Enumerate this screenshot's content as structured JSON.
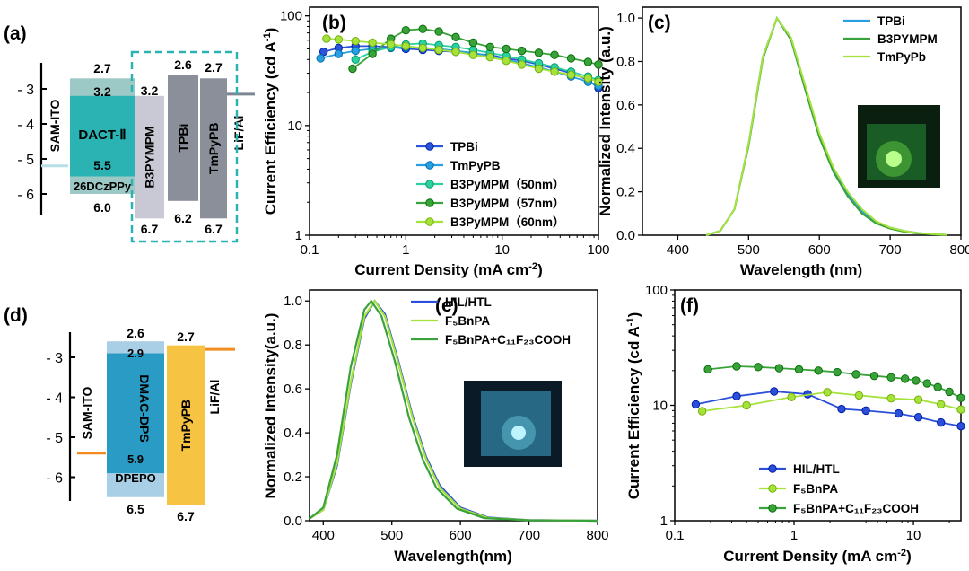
{
  "chart_data": [
    {
      "type": "diagram",
      "panel": "(a)",
      "yticks": [
        "- 3",
        "- 4",
        "- 5",
        "- 6"
      ],
      "electrode_left": "SAM-ITO",
      "electrode_right": "LiF/Al",
      "layers": [
        {
          "name": "DACT-Ⅱ",
          "lumo": 3.2,
          "homo": 5.5,
          "lumo_label": "3.2",
          "homo_label": "5.5",
          "color": "#2bb3b3"
        },
        {
          "name": "26DCzPPy",
          "lumo": 2.7,
          "homo": 6.0,
          "lumo_label": "2.7",
          "homo_label": "6.0",
          "color": "#9cc9c5"
        },
        {
          "name": "B3PYMPM",
          "lumo": 3.2,
          "homo": 6.7,
          "lumo_label": "3.2",
          "homo_label": "6.7",
          "color": "#c9c9d6"
        },
        {
          "name": "TPBi",
          "lumo": 2.6,
          "homo": 6.2,
          "lumo_label": "2.6",
          "homo_label": "6.2",
          "color": "#8a8f99"
        },
        {
          "name": "TmPyPB",
          "lumo": 2.7,
          "homo": 6.7,
          "lumo_label": "2.7",
          "homo_label": "6.7",
          "color": "#8a8f99"
        }
      ]
    },
    {
      "type": "line",
      "panel": "(b)",
      "xlabel": "Current Density (mA cm",
      "xlabel_sup": "-2",
      "xlabel_end": ")",
      "ylabel": "Current Efficiency (cd A",
      "ylabel_sup": "-1",
      "ylabel_end": ")",
      "xscale": "log",
      "yscale": "log",
      "xlim": [
        0.1,
        100
      ],
      "ylim": [
        1,
        120
      ],
      "xticks": [
        "0.1",
        "1",
        "10",
        "100"
      ],
      "yticks": [
        "1",
        "10",
        "100"
      ],
      "series": [
        {
          "name": "TPBi",
          "color": "#2b55d9",
          "x": [
            0.14,
            0.2,
            0.3,
            0.45,
            0.7,
            1.0,
            1.5,
            2.2,
            3.3,
            5,
            7.5,
            11,
            16,
            24,
            35,
            52,
            78,
            100
          ],
          "y": [
            47,
            51,
            53,
            53,
            52,
            50,
            49,
            48,
            47,
            45,
            44,
            41,
            39,
            36,
            33,
            30,
            26,
            22
          ]
        },
        {
          "name": "TmPyPB",
          "color": "#2a9fe0",
          "x": [
            0.13,
            0.2,
            0.3,
            0.45,
            0.7,
            1.0,
            1.5,
            2.2,
            3.3,
            5,
            7.5,
            11,
            16,
            24,
            35,
            52,
            78,
            100
          ],
          "y": [
            41,
            45,
            48,
            50,
            51,
            52,
            51,
            50,
            48,
            46,
            43,
            40,
            37,
            34,
            31,
            28,
            25,
            23
          ]
        },
        {
          "name": "B3PyMPM（50nm）",
          "color": "#2fd0a0",
          "x": [
            0.3,
            0.45,
            0.7,
            1.0,
            1.5,
            2.2,
            3.3,
            5,
            7.5,
            11,
            16,
            24,
            35,
            52,
            78,
            100
          ],
          "y": [
            40,
            47,
            52,
            55,
            56,
            54,
            52,
            49,
            46,
            43,
            40,
            37,
            34,
            31,
            28,
            26
          ]
        },
        {
          "name": "B3PyMPM（57nm）",
          "color": "#3aa23a",
          "x": [
            0.28,
            0.45,
            0.7,
            1.0,
            1.5,
            2.2,
            3.3,
            5,
            7.5,
            11,
            16,
            24,
            35,
            52,
            78,
            100
          ],
          "y": [
            33,
            45,
            62,
            74,
            76,
            72,
            64,
            57,
            52,
            50,
            48,
            46,
            44,
            41,
            38,
            36
          ]
        },
        {
          "name": "B3PyMPM（60nm）",
          "color": "#a6e23c",
          "x": [
            0.15,
            0.2,
            0.3,
            0.45,
            0.7,
            1.0,
            1.5,
            2.2,
            3.3,
            5,
            7.5,
            11,
            16,
            24,
            35,
            52,
            78,
            100
          ],
          "y": [
            62,
            61,
            59,
            57,
            55,
            53,
            51,
            49,
            47,
            44,
            42,
            39,
            36,
            33,
            31,
            29,
            27,
            25
          ]
        }
      ]
    },
    {
      "type": "line",
      "panel": "(c)",
      "xlabel": "Wavelength (nm)",
      "ylabel": "Normalized Intensity (a.u.)",
      "xlim": [
        350,
        800
      ],
      "ylim": [
        0,
        1.05
      ],
      "xticks": [
        "400",
        "500",
        "600",
        "700",
        "800"
      ],
      "yticks": [
        "0.0",
        "0.2",
        "0.4",
        "0.6",
        "0.8",
        "1.0"
      ],
      "series": [
        {
          "name": "TPBi",
          "color": "#2a9fe0",
          "x": [
            440,
            460,
            480,
            500,
            520,
            540,
            560,
            580,
            600,
            620,
            640,
            660,
            680,
            700,
            720,
            740,
            760,
            780
          ],
          "y": [
            0.0,
            0.02,
            0.12,
            0.42,
            0.82,
            1.0,
            0.9,
            0.68,
            0.46,
            0.3,
            0.19,
            0.11,
            0.06,
            0.035,
            0.02,
            0.01,
            0.005,
            0.002
          ]
        },
        {
          "name": "B3PYMPM",
          "color": "#3aa23a",
          "x": [
            440,
            460,
            480,
            500,
            520,
            540,
            560,
            580,
            600,
            620,
            640,
            660,
            680,
            700,
            720,
            740,
            760,
            780
          ],
          "y": [
            0.0,
            0.02,
            0.12,
            0.41,
            0.81,
            1.0,
            0.9,
            0.67,
            0.45,
            0.29,
            0.18,
            0.1,
            0.055,
            0.03,
            0.016,
            0.008,
            0.004,
            0.001
          ]
        },
        {
          "name": "TmPyPb",
          "color": "#a6e23c",
          "x": [
            440,
            460,
            480,
            500,
            520,
            540,
            560,
            580,
            600,
            620,
            640,
            660,
            680,
            700,
            720,
            740,
            760,
            780
          ],
          "y": [
            0.0,
            0.02,
            0.12,
            0.42,
            0.82,
            1.0,
            0.91,
            0.69,
            0.47,
            0.31,
            0.2,
            0.12,
            0.065,
            0.035,
            0.02,
            0.01,
            0.005,
            0.002
          ]
        }
      ]
    },
    {
      "type": "diagram",
      "panel": "(d)",
      "yticks": [
        "- 3",
        "- 4",
        "- 5",
        "- 6"
      ],
      "electrode_left": "SAM-ITO",
      "electrode_right": "LiF/Al",
      "layers": [
        {
          "name": "DMAC-DPS",
          "lumo": 2.9,
          "homo": 5.9,
          "lumo_label": "2.9",
          "homo_label": "5.9",
          "color": "#2a9bc4"
        },
        {
          "name": "DPEPO",
          "lumo": 2.6,
          "homo": 6.5,
          "lumo_label": "2.6",
          "homo_label": "6.5",
          "color": "#a8cfe6"
        },
        {
          "name": "TmPyPB",
          "lumo": 2.7,
          "homo": 6.7,
          "lumo_label": "2.7",
          "homo_label": "6.7",
          "color": "#f7c343"
        }
      ]
    },
    {
      "type": "line",
      "panel": "(e)",
      "xlabel": "Wavelength(nm)",
      "ylabel": "Normalized Intensity(a.u.)",
      "xlim": [
        380,
        800
      ],
      "ylim": [
        0,
        1.05
      ],
      "xticks": [
        "400",
        "500",
        "600",
        "700",
        "800"
      ],
      "yticks": [
        "0.0",
        "0.2",
        "0.4",
        "0.6",
        "0.8",
        "1.0"
      ],
      "series": [
        {
          "name": "HIL/HTL",
          "color": "#2b4fd9",
          "x": [
            380,
            400,
            420,
            440,
            460,
            475,
            490,
            510,
            530,
            550,
            570,
            600,
            640,
            700,
            800
          ],
          "y": [
            0.01,
            0.05,
            0.25,
            0.62,
            0.92,
            1.0,
            0.94,
            0.72,
            0.48,
            0.29,
            0.16,
            0.06,
            0.015,
            0.003,
            0.0
          ]
        },
        {
          "name": "F₅BnPA",
          "color": "#a6e23c",
          "x": [
            380,
            400,
            420,
            440,
            460,
            475,
            490,
            510,
            530,
            550,
            570,
            600,
            640,
            700,
            800
          ],
          "y": [
            0.01,
            0.05,
            0.26,
            0.63,
            0.93,
            1.0,
            0.93,
            0.71,
            0.47,
            0.28,
            0.15,
            0.055,
            0.013,
            0.003,
            0.0
          ]
        },
        {
          "name": "F₅BnPA+C₁₁F₂₃COOH",
          "color": "#3aa23a",
          "x": [
            380,
            400,
            420,
            440,
            460,
            470,
            485,
            505,
            525,
            545,
            565,
            595,
            635,
            700,
            800
          ],
          "y": [
            0.01,
            0.06,
            0.3,
            0.7,
            0.96,
            1.0,
            0.93,
            0.72,
            0.47,
            0.28,
            0.15,
            0.055,
            0.012,
            0.002,
            0.0
          ]
        }
      ]
    },
    {
      "type": "line",
      "panel": "(f)",
      "xlabel": "Current Density (mA cm",
      "xlabel_sup": "-2",
      "xlabel_end": ")",
      "ylabel": "Current Efficiency (cd A",
      "ylabel_sup": "-1",
      "ylabel_end": ")",
      "xscale": "log",
      "yscale": "log",
      "xlim": [
        0.1,
        25
      ],
      "ylim": [
        1,
        100
      ],
      "xticks": [
        "0.1",
        "1",
        "10"
      ],
      "yticks": [
        "1",
        "10",
        "100"
      ],
      "series": [
        {
          "name": "HIL/HTL",
          "color": "#2b4fd9",
          "x": [
            0.15,
            0.33,
            0.68,
            1.3,
            2.5,
            4.0,
            7.5,
            11,
            17,
            25
          ],
          "y": [
            10.2,
            12,
            13.2,
            12.5,
            9.3,
            9.0,
            8.5,
            7.9,
            7.1,
            6.6
          ]
        },
        {
          "name": "F₅BnPA",
          "color": "#a6e23c",
          "x": [
            0.17,
            0.4,
            0.95,
            1.9,
            3.5,
            6.5,
            11,
            17,
            25
          ],
          "y": [
            8.9,
            10,
            11.8,
            13.0,
            12.2,
            11.5,
            11.2,
            10.2,
            9.2
          ]
        },
        {
          "name": "F₅BnPA+C₁₁F₂₃COOH",
          "color": "#3aa23a",
          "x": [
            0.19,
            0.33,
            0.5,
            0.75,
            1.1,
            1.6,
            2.3,
            3.3,
            4.7,
            6.5,
            8.5,
            10.5,
            13,
            16,
            20,
            25
          ],
          "y": [
            20.5,
            21.8,
            21.5,
            21.0,
            20.5,
            20.0,
            19.4,
            18.6,
            18.0,
            17.5,
            17.0,
            16.4,
            15.5,
            14.4,
            13.1,
            11.6
          ]
        }
      ]
    }
  ]
}
